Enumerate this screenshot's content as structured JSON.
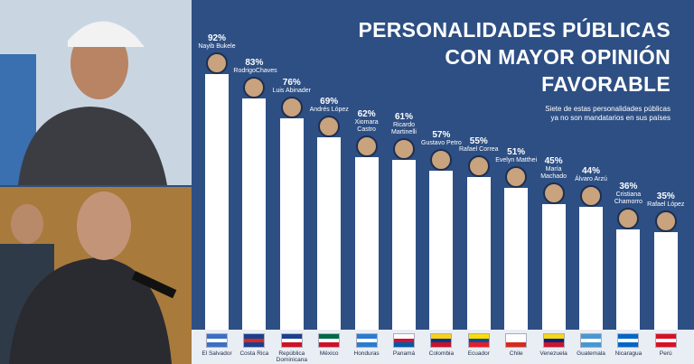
{
  "chart_data": {
    "type": "bar",
    "title": [
      "PERSONALIDADES PÚBLICAS",
      "CON MAYOR OPINIÓN",
      "FAVORABLE"
    ],
    "subtitle": [
      "Siete de estas personalidades públicas",
      "ya no son mandatarios en sus países"
    ],
    "categories": [
      "El Salvador",
      "Costa Rica",
      "República Dominicana",
      "México",
      "Honduras",
      "Panamá",
      "Colombia",
      "Ecuador",
      "Chile",
      "Venezuela",
      "Guatemala",
      "Nicaragua",
      "Perú"
    ],
    "names": [
      "Nayib Bukele",
      "RodrigoChaves",
      "Luis Abinader",
      "Andrés López",
      "Xiomara Castro",
      "Ricardo Martinelli",
      "Gustavo Petro",
      "Rafael Correa",
      "Evelyn Matthei",
      "María Machado",
      "Álvaro Arzú",
      "Cristiana Chamorro",
      "Rafael López"
    ],
    "values": [
      92,
      83,
      76,
      69,
      62,
      61,
      57,
      55,
      51,
      45,
      44,
      36,
      35
    ],
    "value_labels": [
      "92%",
      "83%",
      "76%",
      "69%",
      "62%",
      "61%",
      "57%",
      "55%",
      "51%",
      "45%",
      "44%",
      "36%",
      "35%"
    ],
    "color": "#ffffff"
  }
}
